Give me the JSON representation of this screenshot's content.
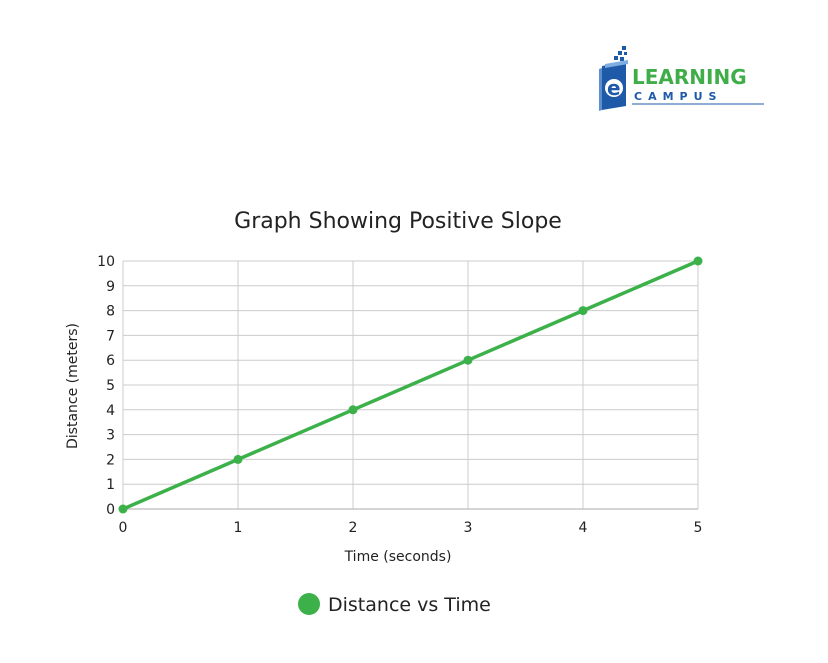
{
  "logo": {
    "line1": "LEARNING",
    "line2": "CAMPUS",
    "letter": "e",
    "colors": {
      "green": "#3fae49",
      "blue": "#1e5aa8"
    }
  },
  "chart_data": {
    "type": "line",
    "title": "Graph Showing Positive Slope",
    "xlabel": "Time (seconds)",
    "ylabel": "Distance (meters)",
    "x": [
      0,
      1,
      2,
      3,
      4,
      5
    ],
    "series": [
      {
        "name": "Distance vs Time",
        "values": [
          0,
          2,
          4,
          6,
          8,
          10
        ],
        "color": "#3cb14a"
      }
    ],
    "xlim": [
      0,
      5
    ],
    "ylim": [
      0,
      10
    ],
    "xticks": [
      "0",
      "1",
      "2",
      "3",
      "4",
      "5"
    ],
    "yticks": [
      "0",
      "1",
      "2",
      "3",
      "4",
      "5",
      "6",
      "7",
      "8",
      "9",
      "10"
    ],
    "grid": true,
    "legend": "bottom"
  }
}
